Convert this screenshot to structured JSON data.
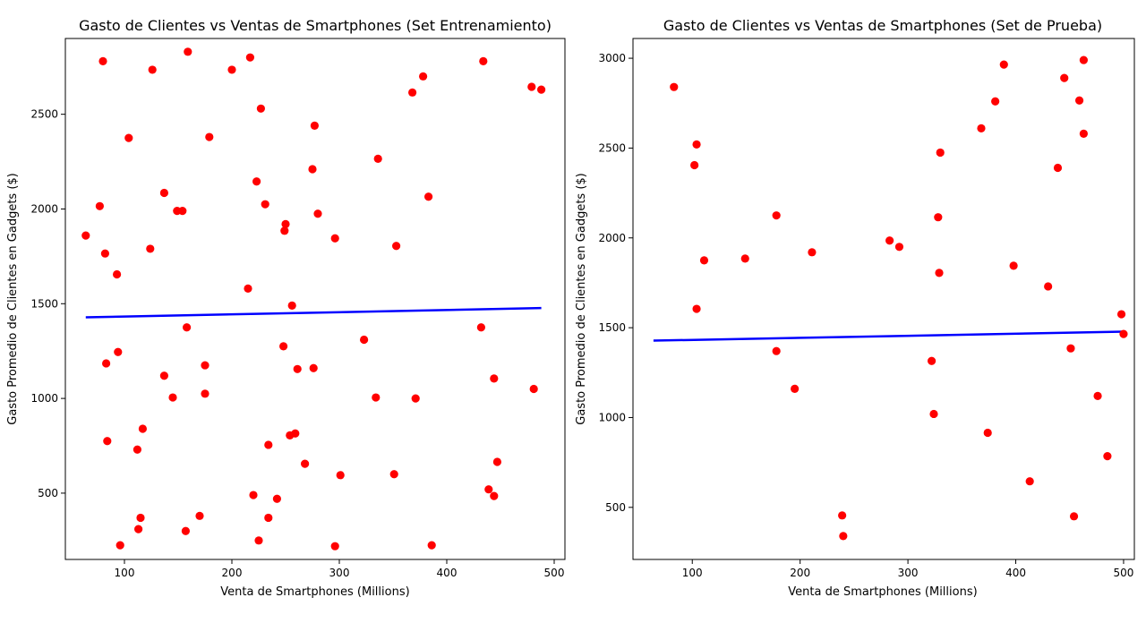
{
  "chart_data": [
    {
      "type": "scatter",
      "title": "Gasto de Clientes vs Ventas de Smartphones (Set Entrenamiento)",
      "xlabel": "Venta de Smartphones (Millions)",
      "ylabel": "Gasto Promedio de Clientes en Gadgets ($)",
      "xlim": [
        45,
        510
      ],
      "ylim": [
        150,
        2900
      ],
      "xticks": [
        100,
        200,
        300,
        400,
        500
      ],
      "yticks": [
        500,
        1000,
        1500,
        2000,
        2500
      ],
      "grid": false,
      "points_color": "#ff0000",
      "line_color": "#0000ff",
      "points": [
        [
          64,
          1860
        ],
        [
          77,
          2015
        ],
        [
          80,
          2780
        ],
        [
          82,
          1765
        ],
        [
          83,
          1185
        ],
        [
          84,
          775
        ],
        [
          93,
          1655
        ],
        [
          94,
          1245
        ],
        [
          96,
          225
        ],
        [
          104,
          2375
        ],
        [
          112,
          730
        ],
        [
          113,
          310
        ],
        [
          115,
          370
        ],
        [
          117,
          840
        ],
        [
          124,
          1790
        ],
        [
          126,
          2735
        ],
        [
          137,
          2085
        ],
        [
          137,
          1120
        ],
        [
          145,
          1005
        ],
        [
          149,
          1990
        ],
        [
          154,
          1990
        ],
        [
          157,
          300
        ],
        [
          158,
          1375
        ],
        [
          159,
          2830
        ],
        [
          170,
          380
        ],
        [
          175,
          1175
        ],
        [
          175,
          1025
        ],
        [
          179,
          2380
        ],
        [
          200,
          2735
        ],
        [
          215,
          1580
        ],
        [
          217,
          2800
        ],
        [
          220,
          490
        ],
        [
          223,
          2145
        ],
        [
          225,
          250
        ],
        [
          227,
          2530
        ],
        [
          231,
          2025
        ],
        [
          234,
          755
        ],
        [
          234,
          370
        ],
        [
          242,
          470
        ],
        [
          248,
          1275
        ],
        [
          249,
          1885
        ],
        [
          250,
          1920
        ],
        [
          254,
          805
        ],
        [
          256,
          1490
        ],
        [
          259,
          815
        ],
        [
          261,
          1155
        ],
        [
          268,
          655
        ],
        [
          275,
          2210
        ],
        [
          276,
          1160
        ],
        [
          277,
          2440
        ],
        [
          280,
          1975
        ],
        [
          296,
          1845
        ],
        [
          296,
          220
        ],
        [
          301,
          595
        ],
        [
          323,
          1310
        ],
        [
          334,
          1005
        ],
        [
          336,
          2265
        ],
        [
          351,
          600
        ],
        [
          353,
          1805
        ],
        [
          368,
          2615
        ],
        [
          371,
          1000
        ],
        [
          378,
          2700
        ],
        [
          383,
          2065
        ],
        [
          386,
          225
        ],
        [
          432,
          1375
        ],
        [
          434,
          2780
        ],
        [
          439,
          520
        ],
        [
          444,
          1105
        ],
        [
          444,
          485
        ],
        [
          447,
          665
        ],
        [
          479,
          2645
        ],
        [
          481,
          1050
        ],
        [
          488,
          2630
        ]
      ],
      "regression_line": {
        "x": [
          64,
          488
        ],
        "y": [
          1428,
          1477
        ]
      }
    },
    {
      "type": "scatter",
      "title": "Gasto de Clientes vs Ventas de Smartphones (Set de Prueba)",
      "xlabel": "Venta de Smartphones (Millions)",
      "ylabel": "Gasto Promedio de Clientes en Gadgets ($)",
      "xlim": [
        45,
        510
      ],
      "ylim": [
        210,
        3110
      ],
      "xticks": [
        100,
        200,
        300,
        400,
        500
      ],
      "yticks": [
        500,
        1000,
        1500,
        2000,
        2500,
        3000
      ],
      "grid": false,
      "points_color": "#ff0000",
      "line_color": "#0000ff",
      "points": [
        [
          83,
          2840
        ],
        [
          102,
          2405
        ],
        [
          104,
          2520
        ],
        [
          104,
          1605
        ],
        [
          111,
          1875
        ],
        [
          149,
          1885
        ],
        [
          178,
          2125
        ],
        [
          178,
          1370
        ],
        [
          195,
          1160
        ],
        [
          211,
          1920
        ],
        [
          239,
          455
        ],
        [
          240,
          340
        ],
        [
          283,
          1985
        ],
        [
          292,
          1950
        ],
        [
          322,
          1315
        ],
        [
          324,
          1020
        ],
        [
          328,
          2115
        ],
        [
          329,
          1805
        ],
        [
          330,
          2475
        ],
        [
          368,
          2610
        ],
        [
          374,
          915
        ],
        [
          381,
          2760
        ],
        [
          389,
          2965
        ],
        [
          398,
          1845
        ],
        [
          413,
          645
        ],
        [
          430,
          1730
        ],
        [
          439,
          2390
        ],
        [
          445,
          2890
        ],
        [
          451,
          1385
        ],
        [
          454,
          450
        ],
        [
          459,
          2765
        ],
        [
          463,
          2580
        ],
        [
          463,
          2990
        ],
        [
          476,
          1120
        ],
        [
          485,
          785
        ],
        [
          498,
          1575
        ],
        [
          500,
          1465
        ]
      ],
      "regression_line": {
        "x": [
          64,
          500
        ],
        "y": [
          1428,
          1478
        ]
      }
    }
  ]
}
